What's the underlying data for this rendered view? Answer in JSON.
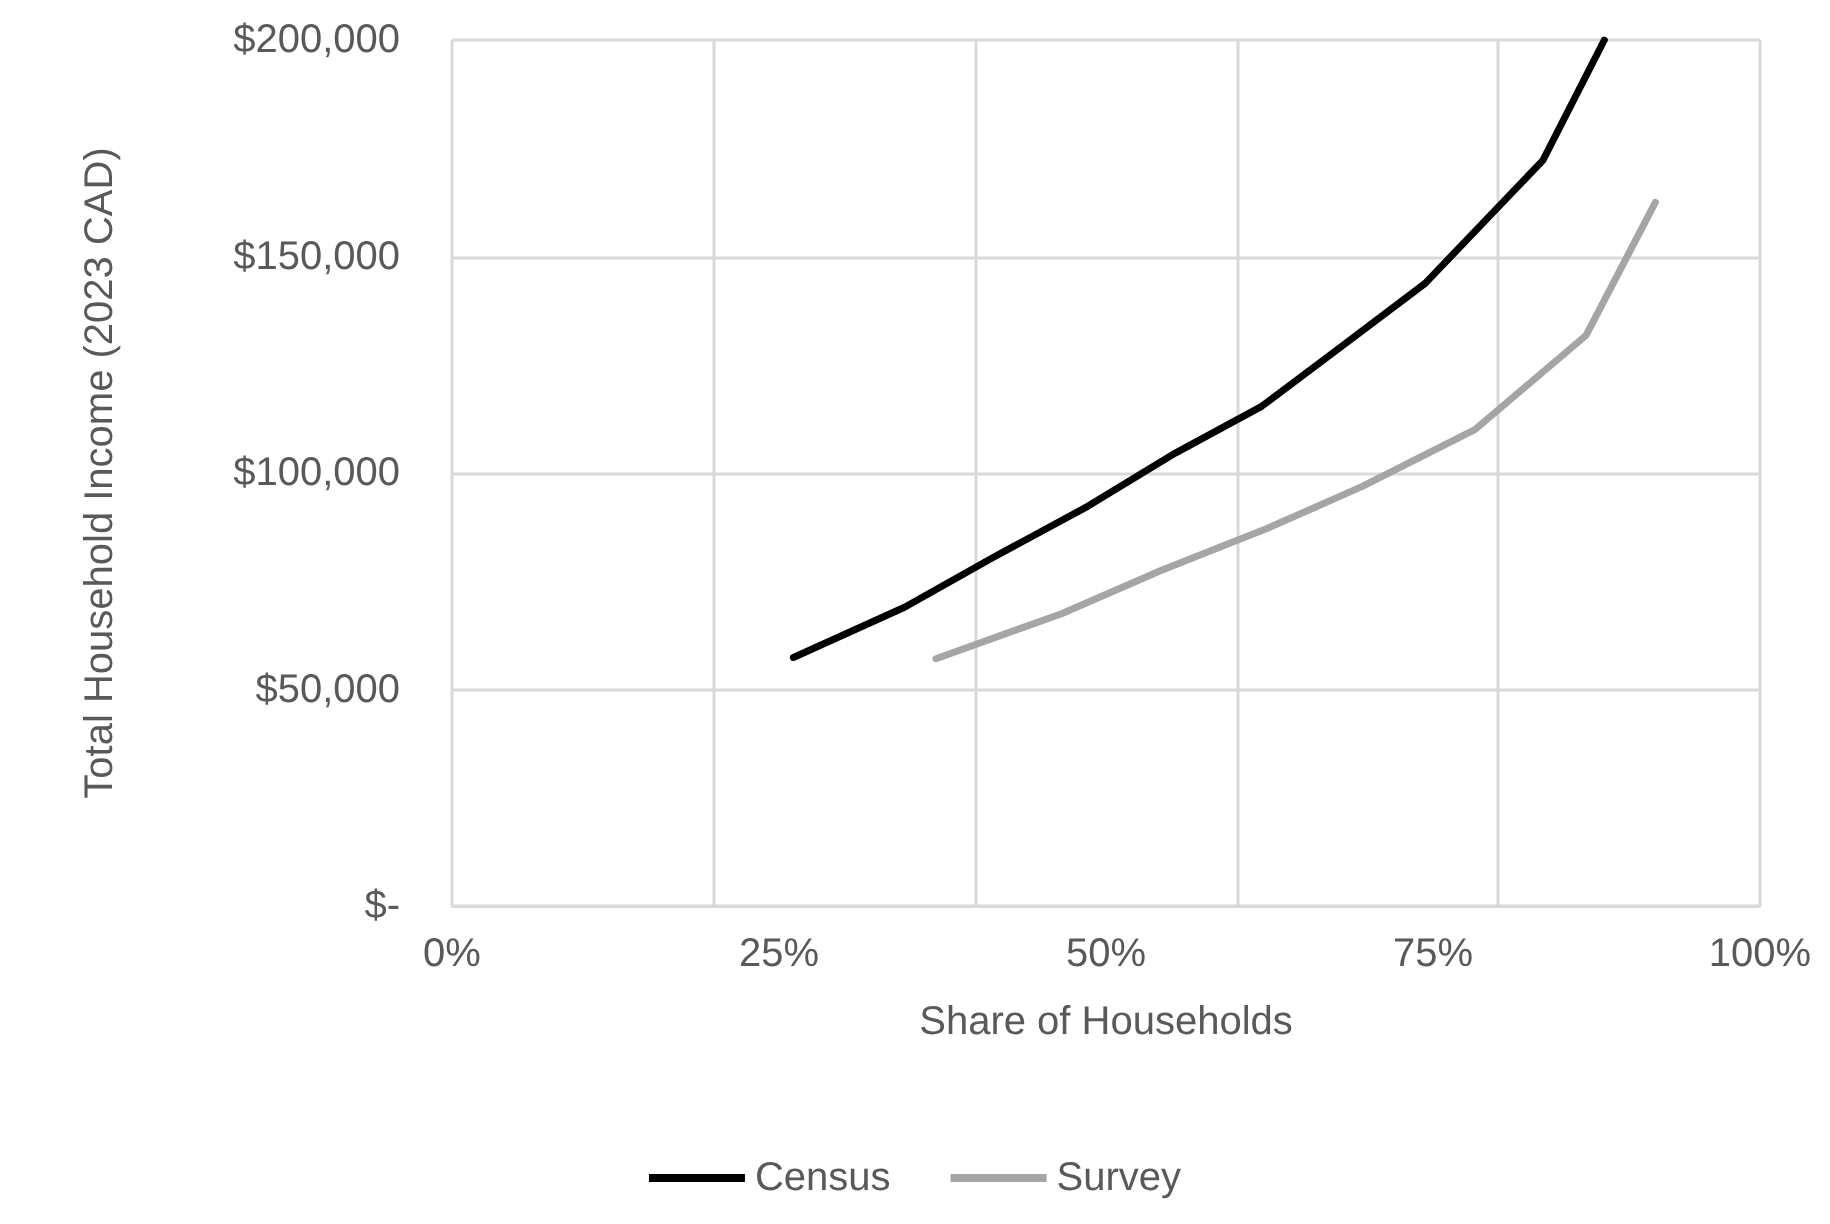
{
  "chart_data": {
    "type": "line",
    "xlabel": "Share of Households",
    "ylabel": "Total Household Income (2023 CAD)",
    "xlim": [
      0,
      100
    ],
    "xticks": [
      {
        "value": 0,
        "label": "0%"
      },
      {
        "value": 25,
        "label": "25%"
      },
      {
        "value": 50,
        "label": "50%"
      },
      {
        "value": 75,
        "label": "75%"
      },
      {
        "value": 100,
        "label": "100%"
      }
    ],
    "ylim": [
      0,
      200000
    ],
    "yticks": [
      {
        "value": 0,
        "label": "$-"
      },
      {
        "value": 50000,
        "label": "$50,000"
      },
      {
        "value": 100000,
        "label": "$100,000"
      },
      {
        "value": 150000,
        "label": "$150,000"
      },
      {
        "value": 200000,
        "label": "$200,000"
      }
    ],
    "grid": true,
    "legend": "bottom",
    "marker": "none",
    "line_style": "solid",
    "series": [
      {
        "name": "Census",
        "color": "#000000",
        "x": [
          26.1,
          34.6,
          41.5,
          48.6,
          55.3,
          61.9,
          68.0,
          74.4,
          83.4,
          88.1
        ],
        "values": [
          57400,
          69000,
          80700,
          92300,
          104600,
          115400,
          129200,
          143800,
          172200,
          200000
        ]
      },
      {
        "name": "Survey",
        "color": "#a5a5a5",
        "x": [
          37.0,
          46.6,
          54.2,
          62.4,
          69.6,
          78.2,
          86.7,
          92.0
        ],
        "values": [
          57100,
          67500,
          77500,
          87300,
          96900,
          110000,
          131800,
          162500
        ]
      }
    ]
  }
}
